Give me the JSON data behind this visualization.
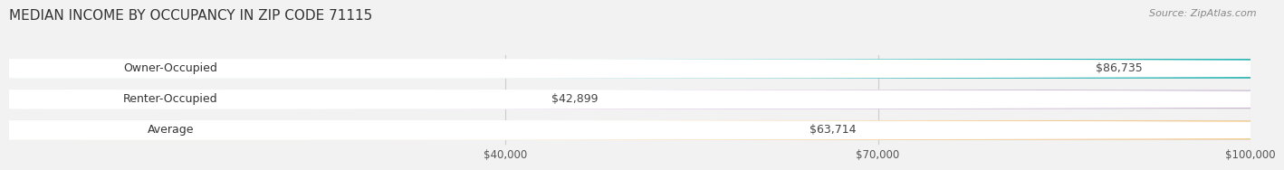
{
  "title": "MEDIAN INCOME BY OCCUPANCY IN ZIP CODE 71115",
  "source": "Source: ZipAtlas.com",
  "categories": [
    "Owner-Occupied",
    "Renter-Occupied",
    "Average"
  ],
  "values": [
    86735,
    42899,
    63714
  ],
  "bar_colors": [
    "#2ab5b5",
    "#c4a8d0",
    "#f5c98a"
  ],
  "value_labels": [
    "$86,735",
    "$42,899",
    "$63,714"
  ],
  "xlim": [
    0,
    100000
  ],
  "xticks": [
    40000,
    70000,
    100000
  ],
  "xtick_labels": [
    "$40,000",
    "$70,000",
    "$100,000"
  ],
  "background_color": "#f2f2f2",
  "bar_background_color": "#e0e0e0",
  "title_fontsize": 11,
  "source_fontsize": 8,
  "bar_height": 0.6,
  "label_fontsize": 9,
  "value_fontsize": 9
}
